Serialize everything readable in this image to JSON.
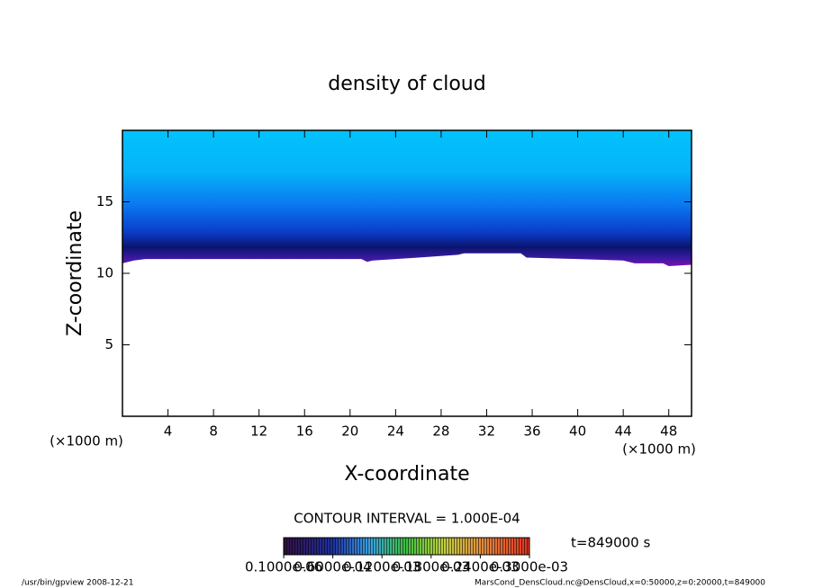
{
  "chart_data": {
    "type": "contour",
    "title": "density of cloud",
    "xlabel": "X-coordinate",
    "ylabel": "Z-coordinate",
    "xunit": "(×1000 m)",
    "yunit": "(×1000 m)",
    "xlim": [
      0,
      50
    ],
    "ylim": [
      0,
      20
    ],
    "xticks": [
      4,
      8,
      12,
      16,
      20,
      24,
      28,
      32,
      36,
      40,
      44,
      48
    ],
    "yticks": [
      5,
      10,
      15
    ],
    "x": [
      0,
      1,
      2,
      6,
      10,
      14,
      18,
      21,
      21.5,
      22,
      26,
      29.5,
      30,
      35,
      35.5,
      40,
      44,
      45,
      47.5,
      48,
      50
    ],
    "cloud_base": [
      10.7,
      10.9,
      11.0,
      11.0,
      11.0,
      11.0,
      11.0,
      11.0,
      10.8,
      10.9,
      11.1,
      11.3,
      11.4,
      11.4,
      11.1,
      11.0,
      10.9,
      10.7,
      10.7,
      10.5,
      10.6
    ],
    "contour_interval": "CONTOUR INTERVAL = 1.000E-04",
    "time_label": "t=849000 s",
    "clim": [
      0,
      0.0003
    ],
    "colorbar_ticks": [
      {
        "value": 1e-07,
        "label": "0.1000e-06"
      },
      {
        "value": 6e-05,
        "label": "0.6000e-04"
      },
      {
        "value": 0.00012,
        "label": "0.1200e-03"
      },
      {
        "value": 0.00018,
        "label": "0.1800e-03"
      },
      {
        "value": 0.00024,
        "label": "0.2400e-03"
      },
      {
        "value": 0.0003,
        "label": "0.3000e-03"
      }
    ],
    "footer_left": "/usr/bin/gpview   2008-12-21",
    "footer_right": "MarsCond_DensCloud.nc@DensCloud,x=0:50000,z=0:20000,t=849000"
  }
}
